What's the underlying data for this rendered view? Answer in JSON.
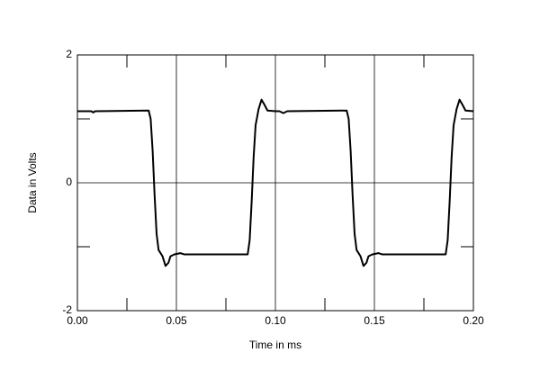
{
  "chart_data": {
    "type": "line",
    "xlabel": "Time in ms",
    "ylabel": "Data in Volts",
    "x": [
      0,
      0.007,
      0.008,
      0.009,
      0.036,
      0.037,
      0.038,
      0.039,
      0.04,
      0.041,
      0.043,
      0.0445,
      0.046,
      0.047,
      0.049,
      0.052,
      0.054,
      0.086,
      0.087,
      0.088,
      0.089,
      0.09,
      0.0915,
      0.093,
      0.0945,
      0.096,
      0.1,
      0.102,
      0.104,
      0.106,
      0.136,
      0.137,
      0.138,
      0.139,
      0.14,
      0.141,
      0.143,
      0.1445,
      0.146,
      0.147,
      0.149,
      0.152,
      0.154,
      0.186,
      0.187,
      0.188,
      0.189,
      0.19,
      0.1915,
      0.193,
      0.1945,
      0.196,
      0.2
    ],
    "series": [
      {
        "color": "#000000",
        "values": [
          1.12,
          1.12,
          1.1,
          1.12,
          1.13,
          1.0,
          0.5,
          -0.2,
          -0.8,
          -1.05,
          -1.15,
          -1.3,
          -1.25,
          -1.15,
          -1.12,
          -1.1,
          -1.12,
          -1.12,
          -0.9,
          -0.3,
          0.4,
          0.9,
          1.15,
          1.3,
          1.22,
          1.13,
          1.12,
          1.12,
          1.09,
          1.12,
          1.13,
          1.0,
          0.5,
          -0.2,
          -0.8,
          -1.05,
          -1.15,
          -1.3,
          -1.25,
          -1.15,
          -1.12,
          -1.1,
          -1.12,
          -1.12,
          -0.9,
          -0.3,
          0.4,
          0.9,
          1.15,
          1.3,
          1.22,
          1.13,
          1.12
        ]
      }
    ],
    "xlim": [
      0,
      0.2
    ],
    "ylim": [
      -2,
      2
    ],
    "xticks": [
      {
        "value": 0,
        "label": "0.00"
      },
      {
        "value": 0.05,
        "label": "0.05"
      },
      {
        "value": 0.1,
        "label": "0.10"
      },
      {
        "value": 0.15,
        "label": "0.15"
      },
      {
        "value": 0.2,
        "label": "0.20"
      }
    ],
    "yticks": [
      -2,
      0,
      2
    ],
    "xminorticks": [
      0.025,
      0.075,
      0.125,
      0.175
    ],
    "yminorticks": [
      -1,
      1
    ],
    "grid": true
  }
}
